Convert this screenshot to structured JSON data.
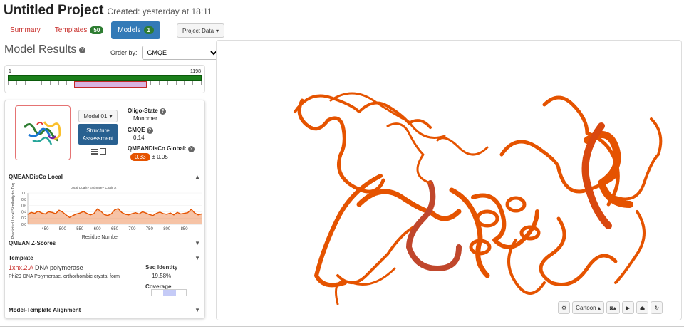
{
  "header": {
    "title": "Untitled Project",
    "created": "Created: yesterday at 18:11"
  },
  "tabs": [
    {
      "label": "Summary"
    },
    {
      "label": "Templates",
      "badge": "50"
    },
    {
      "label": "Models",
      "badge": "1"
    }
  ],
  "project_data_label": "Project Data",
  "results": {
    "title": "Model Results",
    "order_label": "Order by:",
    "order_value": "GMQE"
  },
  "coverage": {
    "start": "1",
    "end": "1198"
  },
  "model": {
    "select_label": "Model 01",
    "assessment_line1": "Structure",
    "assessment_line2": "Assessment",
    "oligo_label": "Oligo-State",
    "oligo_value": "Monomer",
    "gmqe_label": "GMQE",
    "gmqe_value": "0.14",
    "qmean_label": "QMEANDisCo Global:",
    "qmean_value": "0.33",
    "qmean_err": "± 0.05"
  },
  "sections": {
    "local": "QMEANDisCo Local",
    "zscores": "QMEAN Z-Scores",
    "template": "Template",
    "alignment": "Model-Template Alignment"
  },
  "template": {
    "id": "1xhx.2.A",
    "name": "DNA polymerase",
    "description": "Phi29 DNA Polymerase, orthorhombic crystal form",
    "seq_identity_label": "Seq Identity",
    "seq_identity_value": "19.58%",
    "coverage_label": "Coverage",
    "coverage_fraction_start": 0.34,
    "coverage_fraction_end": 0.7
  },
  "chart_data": {
    "type": "line",
    "title": "Local Quality Estimate - Chain A",
    "xlabel": "Residue Number",
    "ylabel": "Predicted Local Similarity to Target",
    "xlim": [
      400,
      900
    ],
    "ylim": [
      0,
      1.0
    ],
    "xticks": [
      "450",
      "500",
      "550",
      "600",
      "650",
      "700",
      "750",
      "800",
      "850"
    ],
    "yticks": [
      "0.0",
      "0.2",
      "0.4",
      "0.6",
      "0.8",
      "1.0"
    ],
    "series": [
      {
        "name": "",
        "x": [
          400,
          410,
          420,
          430,
          440,
          450,
          460,
          470,
          480,
          490,
          500,
          510,
          520,
          530,
          540,
          550,
          560,
          570,
          580,
          590,
          600,
          610,
          620,
          630,
          640,
          650,
          660,
          670,
          680,
          690,
          700,
          710,
          720,
          730,
          740,
          750,
          760,
          770,
          780,
          790,
          800,
          810,
          820,
          830,
          840,
          850,
          860,
          870,
          880,
          890,
          900
        ],
        "values": [
          0.32,
          0.38,
          0.35,
          0.42,
          0.36,
          0.33,
          0.4,
          0.38,
          0.34,
          0.45,
          0.39,
          0.3,
          0.22,
          0.28,
          0.33,
          0.36,
          0.41,
          0.35,
          0.3,
          0.34,
          0.49,
          0.42,
          0.31,
          0.28,
          0.33,
          0.46,
          0.5,
          0.38,
          0.32,
          0.3,
          0.34,
          0.37,
          0.33,
          0.4,
          0.36,
          0.31,
          0.28,
          0.35,
          0.39,
          0.34,
          0.32,
          0.36,
          0.3,
          0.38,
          0.33,
          0.35,
          0.37,
          0.48,
          0.36,
          0.3,
          0.33
        ]
      }
    ],
    "color": "#e55300"
  },
  "toolbar": {
    "cartoon_label": "Cartoon"
  },
  "colors": {
    "accent": "#337ab7",
    "link": "#c9302c",
    "badge": "#2e7d32",
    "protein": "#e55300"
  }
}
